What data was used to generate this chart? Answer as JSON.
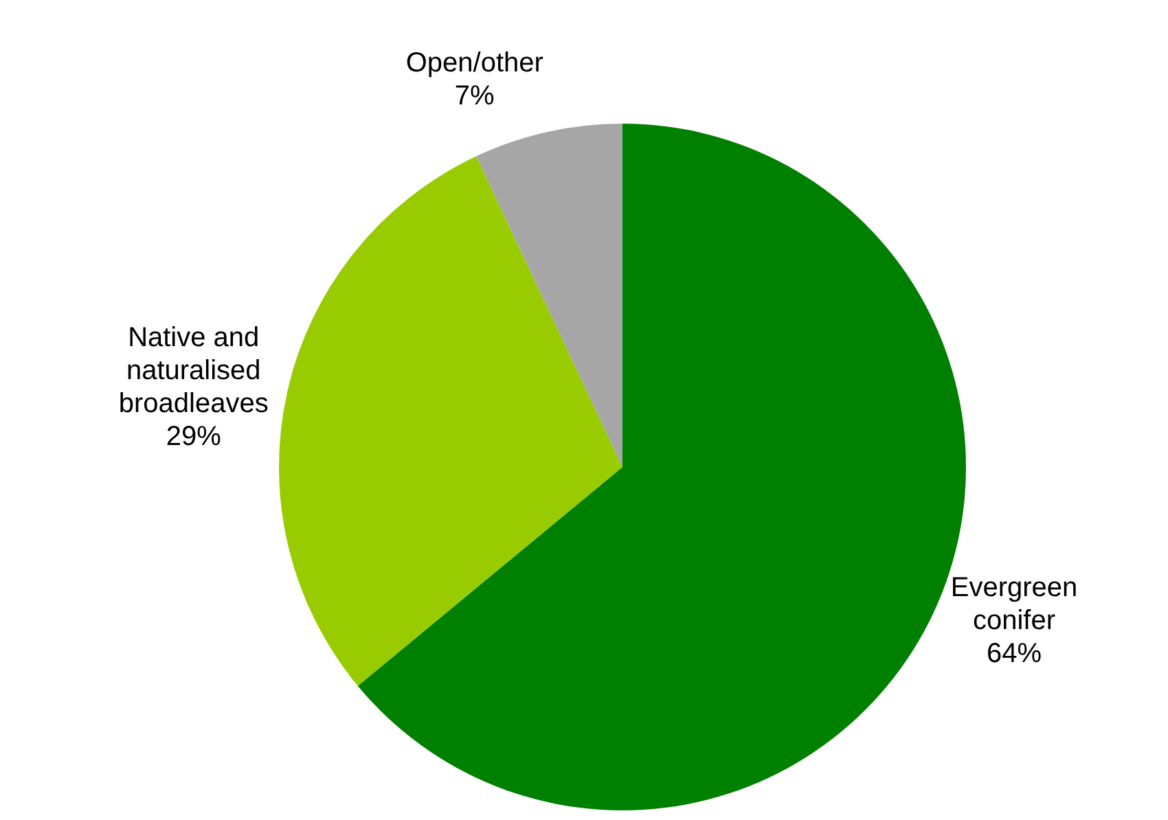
{
  "chart_data": {
    "type": "pie",
    "categories": [
      "Evergreen conifer",
      "Native and naturalised broadleaves",
      "Open/other"
    ],
    "values": [
      64,
      29,
      7
    ],
    "colors": [
      "#008000",
      "#99cc00",
      "#a6a6a6"
    ],
    "value_labels": [
      "64%",
      "29%",
      "7%"
    ],
    "legend": false
  }
}
